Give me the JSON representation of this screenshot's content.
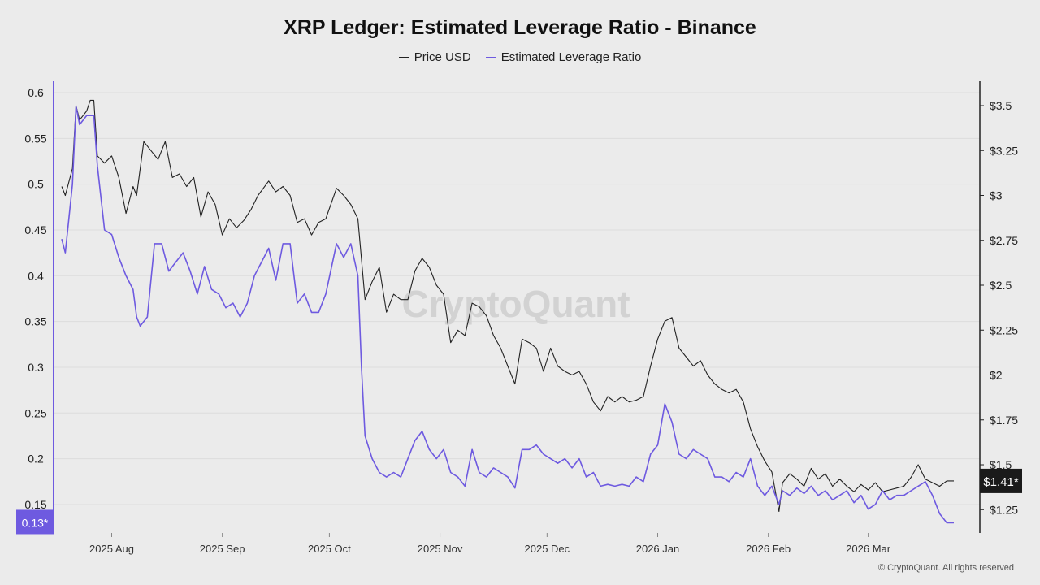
{
  "chart_data": {
    "type": "line",
    "title": "XRP Ledger: Estimated Leverage Ratio - Binance",
    "watermark": "CryptoQuant",
    "copyright": "© CryptoQuant. All rights reserved",
    "x_ticks": [
      "2025 Aug",
      "2025 Sep",
      "2025 Oct",
      "2025 Nov",
      "2025 Dec",
      "2026 Jan",
      "2026 Feb",
      "2026 Mar"
    ],
    "x_range": [
      "2025-07-18",
      "2026-03-30"
    ],
    "left_axis": {
      "ylim": [
        0.11,
        0.61
      ],
      "ticks": [
        0.6,
        0.55,
        0.5,
        0.45,
        0.4,
        0.35,
        0.3,
        0.25,
        0.2,
        0.15
      ],
      "last_value_label": "0.13*"
    },
    "right_axis": {
      "ylim": [
        1.12,
        3.6
      ],
      "ticks": [
        3.5,
        3.25,
        3,
        2.75,
        2.5,
        2.25,
        2,
        1.75,
        1.5,
        1.25
      ],
      "tick_labels": [
        "$3.5",
        "$3.25",
        "$3",
        "$2.75",
        "$2.5",
        "$2.25",
        "$2",
        "$1.75",
        "$1.5",
        "$1.25"
      ],
      "last_value_label": "$1.41*"
    },
    "grid": true,
    "legend_position": "top-center",
    "series": [
      {
        "name": "Price USD",
        "axis": "right",
        "color": "#222222",
        "points": [
          [
            "2025-07-18",
            3.05
          ],
          [
            "2025-07-19",
            3.0
          ],
          [
            "2025-07-21",
            3.15
          ],
          [
            "2025-07-22",
            3.5
          ],
          [
            "2025-07-23",
            3.42
          ],
          [
            "2025-07-25",
            3.47
          ],
          [
            "2025-07-26",
            3.53
          ],
          [
            "2025-07-27",
            3.53
          ],
          [
            "2025-07-28",
            3.22
          ],
          [
            "2025-07-30",
            3.18
          ],
          [
            "2025-08-01",
            3.22
          ],
          [
            "2025-08-03",
            3.1
          ],
          [
            "2025-08-05",
            2.9
          ],
          [
            "2025-08-07",
            3.05
          ],
          [
            "2025-08-08",
            3.0
          ],
          [
            "2025-08-10",
            3.3
          ],
          [
            "2025-08-12",
            3.25
          ],
          [
            "2025-08-14",
            3.2
          ],
          [
            "2025-08-16",
            3.3
          ],
          [
            "2025-08-18",
            3.1
          ],
          [
            "2025-08-20",
            3.12
          ],
          [
            "2025-08-22",
            3.05
          ],
          [
            "2025-08-24",
            3.1
          ],
          [
            "2025-08-26",
            2.88
          ],
          [
            "2025-08-28",
            3.02
          ],
          [
            "2025-08-30",
            2.95
          ],
          [
            "2025-09-01",
            2.78
          ],
          [
            "2025-09-03",
            2.87
          ],
          [
            "2025-09-05",
            2.82
          ],
          [
            "2025-09-07",
            2.86
          ],
          [
            "2025-09-09",
            2.92
          ],
          [
            "2025-09-11",
            3.0
          ],
          [
            "2025-09-14",
            3.08
          ],
          [
            "2025-09-16",
            3.02
          ],
          [
            "2025-09-18",
            3.05
          ],
          [
            "2025-09-20",
            3.0
          ],
          [
            "2025-09-22",
            2.85
          ],
          [
            "2025-09-24",
            2.87
          ],
          [
            "2025-09-26",
            2.78
          ],
          [
            "2025-09-28",
            2.85
          ],
          [
            "2025-09-30",
            2.87
          ],
          [
            "2025-10-03",
            3.04
          ],
          [
            "2025-10-05",
            3.0
          ],
          [
            "2025-10-07",
            2.95
          ],
          [
            "2025-10-09",
            2.87
          ],
          [
            "2025-10-11",
            2.42
          ],
          [
            "2025-10-13",
            2.52
          ],
          [
            "2025-10-15",
            2.6
          ],
          [
            "2025-10-17",
            2.35
          ],
          [
            "2025-10-19",
            2.45
          ],
          [
            "2025-10-21",
            2.42
          ],
          [
            "2025-10-23",
            2.42
          ],
          [
            "2025-10-25",
            2.58
          ],
          [
            "2025-10-27",
            2.65
          ],
          [
            "2025-10-29",
            2.6
          ],
          [
            "2025-10-31",
            2.5
          ],
          [
            "2025-11-02",
            2.45
          ],
          [
            "2025-11-04",
            2.18
          ],
          [
            "2025-11-06",
            2.25
          ],
          [
            "2025-11-08",
            2.22
          ],
          [
            "2025-11-10",
            2.4
          ],
          [
            "2025-11-12",
            2.38
          ],
          [
            "2025-11-14",
            2.33
          ],
          [
            "2025-11-16",
            2.22
          ],
          [
            "2025-11-18",
            2.15
          ],
          [
            "2025-11-20",
            2.05
          ],
          [
            "2025-11-22",
            1.95
          ],
          [
            "2025-11-24",
            2.2
          ],
          [
            "2025-11-26",
            2.18
          ],
          [
            "2025-11-28",
            2.15
          ],
          [
            "2025-11-30",
            2.02
          ],
          [
            "2025-12-02",
            2.15
          ],
          [
            "2025-12-04",
            2.05
          ],
          [
            "2025-12-06",
            2.02
          ],
          [
            "2025-12-08",
            2.0
          ],
          [
            "2025-12-10",
            2.02
          ],
          [
            "2025-12-12",
            1.95
          ],
          [
            "2025-12-14",
            1.85
          ],
          [
            "2025-12-16",
            1.8
          ],
          [
            "2025-12-18",
            1.88
          ],
          [
            "2025-12-20",
            1.85
          ],
          [
            "2025-12-22",
            1.88
          ],
          [
            "2025-12-24",
            1.85
          ],
          [
            "2025-12-26",
            1.86
          ],
          [
            "2025-12-28",
            1.88
          ],
          [
            "2025-12-30",
            2.05
          ],
          [
            "2026-01-01",
            2.2
          ],
          [
            "2026-01-03",
            2.3
          ],
          [
            "2026-01-05",
            2.32
          ],
          [
            "2026-01-07",
            2.15
          ],
          [
            "2026-01-09",
            2.1
          ],
          [
            "2026-01-11",
            2.05
          ],
          [
            "2026-01-13",
            2.08
          ],
          [
            "2026-01-15",
            2.0
          ],
          [
            "2026-01-17",
            1.95
          ],
          [
            "2026-01-19",
            1.92
          ],
          [
            "2026-01-21",
            1.9
          ],
          [
            "2026-01-23",
            1.92
          ],
          [
            "2026-01-25",
            1.85
          ],
          [
            "2026-01-27",
            1.7
          ],
          [
            "2026-01-29",
            1.6
          ],
          [
            "2026-01-31",
            1.52
          ],
          [
            "2026-02-02",
            1.46
          ],
          [
            "2026-02-04",
            1.24
          ],
          [
            "2026-02-05",
            1.4
          ],
          [
            "2026-02-07",
            1.45
          ],
          [
            "2026-02-09",
            1.42
          ],
          [
            "2026-02-11",
            1.38
          ],
          [
            "2026-02-13",
            1.48
          ],
          [
            "2026-02-15",
            1.42
          ],
          [
            "2026-02-17",
            1.45
          ],
          [
            "2026-02-19",
            1.38
          ],
          [
            "2026-02-21",
            1.42
          ],
          [
            "2026-02-23",
            1.38
          ],
          [
            "2026-02-25",
            1.35
          ],
          [
            "2026-02-27",
            1.39
          ],
          [
            "2026-03-01",
            1.36
          ],
          [
            "2026-03-03",
            1.4
          ],
          [
            "2026-03-05",
            1.35
          ],
          [
            "2026-03-07",
            1.36
          ],
          [
            "2026-03-09",
            1.37
          ],
          [
            "2026-03-11",
            1.38
          ],
          [
            "2026-03-13",
            1.43
          ],
          [
            "2026-03-15",
            1.5
          ],
          [
            "2026-03-17",
            1.42
          ],
          [
            "2026-03-19",
            1.4
          ],
          [
            "2026-03-21",
            1.38
          ],
          [
            "2026-03-23",
            1.41
          ],
          [
            "2026-03-25",
            1.41
          ]
        ]
      },
      {
        "name": "Estimated Leverage Ratio",
        "axis": "left",
        "color": "#6e5ae0",
        "points": [
          [
            "2025-07-18",
            0.44
          ],
          [
            "2025-07-19",
            0.425
          ],
          [
            "2025-07-21",
            0.5
          ],
          [
            "2025-07-22",
            0.585
          ],
          [
            "2025-07-23",
            0.565
          ],
          [
            "2025-07-25",
            0.575
          ],
          [
            "2025-07-27",
            0.575
          ],
          [
            "2025-07-28",
            0.52
          ],
          [
            "2025-07-30",
            0.45
          ],
          [
            "2025-08-01",
            0.445
          ],
          [
            "2025-08-03",
            0.42
          ],
          [
            "2025-08-05",
            0.4
          ],
          [
            "2025-08-07",
            0.385
          ],
          [
            "2025-08-08",
            0.355
          ],
          [
            "2025-08-09",
            0.345
          ],
          [
            "2025-08-11",
            0.355
          ],
          [
            "2025-08-13",
            0.435
          ],
          [
            "2025-08-15",
            0.435
          ],
          [
            "2025-08-17",
            0.405
          ],
          [
            "2025-08-19",
            0.415
          ],
          [
            "2025-08-21",
            0.425
          ],
          [
            "2025-08-23",
            0.405
          ],
          [
            "2025-08-25",
            0.38
          ],
          [
            "2025-08-27",
            0.41
          ],
          [
            "2025-08-29",
            0.385
          ],
          [
            "2025-08-31",
            0.38
          ],
          [
            "2025-09-02",
            0.365
          ],
          [
            "2025-09-04",
            0.37
          ],
          [
            "2025-09-06",
            0.355
          ],
          [
            "2025-09-08",
            0.37
          ],
          [
            "2025-09-10",
            0.4
          ],
          [
            "2025-09-12",
            0.415
          ],
          [
            "2025-09-14",
            0.43
          ],
          [
            "2025-09-16",
            0.395
          ],
          [
            "2025-09-18",
            0.435
          ],
          [
            "2025-09-20",
            0.435
          ],
          [
            "2025-09-22",
            0.37
          ],
          [
            "2025-09-24",
            0.38
          ],
          [
            "2025-09-26",
            0.36
          ],
          [
            "2025-09-28",
            0.36
          ],
          [
            "2025-09-30",
            0.38
          ],
          [
            "2025-10-03",
            0.435
          ],
          [
            "2025-10-05",
            0.42
          ],
          [
            "2025-10-07",
            0.435
          ],
          [
            "2025-10-09",
            0.4
          ],
          [
            "2025-10-10",
            0.3
          ],
          [
            "2025-10-11",
            0.225
          ],
          [
            "2025-10-13",
            0.2
          ],
          [
            "2025-10-15",
            0.185
          ],
          [
            "2025-10-17",
            0.18
          ],
          [
            "2025-10-19",
            0.185
          ],
          [
            "2025-10-21",
            0.18
          ],
          [
            "2025-10-23",
            0.2
          ],
          [
            "2025-10-25",
            0.22
          ],
          [
            "2025-10-27",
            0.23
          ],
          [
            "2025-10-29",
            0.21
          ],
          [
            "2025-10-31",
            0.2
          ],
          [
            "2025-11-02",
            0.21
          ],
          [
            "2025-11-04",
            0.185
          ],
          [
            "2025-11-06",
            0.18
          ],
          [
            "2025-11-08",
            0.17
          ],
          [
            "2025-11-10",
            0.21
          ],
          [
            "2025-11-12",
            0.185
          ],
          [
            "2025-11-14",
            0.18
          ],
          [
            "2025-11-16",
            0.19
          ],
          [
            "2025-11-18",
            0.185
          ],
          [
            "2025-11-20",
            0.18
          ],
          [
            "2025-11-22",
            0.168
          ],
          [
            "2025-11-24",
            0.21
          ],
          [
            "2025-11-26",
            0.21
          ],
          [
            "2025-11-28",
            0.215
          ],
          [
            "2025-11-30",
            0.205
          ],
          [
            "2025-12-02",
            0.2
          ],
          [
            "2025-12-04",
            0.195
          ],
          [
            "2025-12-06",
            0.2
          ],
          [
            "2025-12-08",
            0.19
          ],
          [
            "2025-12-10",
            0.2
          ],
          [
            "2025-12-12",
            0.18
          ],
          [
            "2025-12-14",
            0.185
          ],
          [
            "2025-12-16",
            0.17
          ],
          [
            "2025-12-18",
            0.172
          ],
          [
            "2025-12-20",
            0.17
          ],
          [
            "2025-12-22",
            0.172
          ],
          [
            "2025-12-24",
            0.17
          ],
          [
            "2025-12-26",
            0.18
          ],
          [
            "2025-12-28",
            0.175
          ],
          [
            "2025-12-30",
            0.205
          ],
          [
            "2026-01-01",
            0.215
          ],
          [
            "2026-01-03",
            0.26
          ],
          [
            "2026-01-05",
            0.24
          ],
          [
            "2026-01-07",
            0.205
          ],
          [
            "2026-01-09",
            0.2
          ],
          [
            "2026-01-11",
            0.21
          ],
          [
            "2026-01-13",
            0.205
          ],
          [
            "2026-01-15",
            0.2
          ],
          [
            "2026-01-17",
            0.18
          ],
          [
            "2026-01-19",
            0.18
          ],
          [
            "2026-01-21",
            0.175
          ],
          [
            "2026-01-23",
            0.185
          ],
          [
            "2026-01-25",
            0.18
          ],
          [
            "2026-01-27",
            0.2
          ],
          [
            "2026-01-29",
            0.17
          ],
          [
            "2026-01-31",
            0.16
          ],
          [
            "2026-02-02",
            0.17
          ],
          [
            "2026-02-04",
            0.15
          ],
          [
            "2026-02-05",
            0.165
          ],
          [
            "2026-02-07",
            0.16
          ],
          [
            "2026-02-09",
            0.168
          ],
          [
            "2026-02-11",
            0.162
          ],
          [
            "2026-02-13",
            0.17
          ],
          [
            "2026-02-15",
            0.16
          ],
          [
            "2026-02-17",
            0.165
          ],
          [
            "2026-02-19",
            0.155
          ],
          [
            "2026-02-21",
            0.16
          ],
          [
            "2026-02-23",
            0.165
          ],
          [
            "2026-02-25",
            0.152
          ],
          [
            "2026-02-27",
            0.16
          ],
          [
            "2026-03-01",
            0.145
          ],
          [
            "2026-03-03",
            0.15
          ],
          [
            "2026-03-05",
            0.165
          ],
          [
            "2026-03-07",
            0.155
          ],
          [
            "2026-03-09",
            0.16
          ],
          [
            "2026-03-11",
            0.16
          ],
          [
            "2026-03-13",
            0.165
          ],
          [
            "2026-03-15",
            0.17
          ],
          [
            "2026-03-17",
            0.175
          ],
          [
            "2026-03-19",
            0.16
          ],
          [
            "2026-03-21",
            0.14
          ],
          [
            "2026-03-23",
            0.13
          ],
          [
            "2026-03-25",
            0.13
          ]
        ]
      }
    ]
  }
}
